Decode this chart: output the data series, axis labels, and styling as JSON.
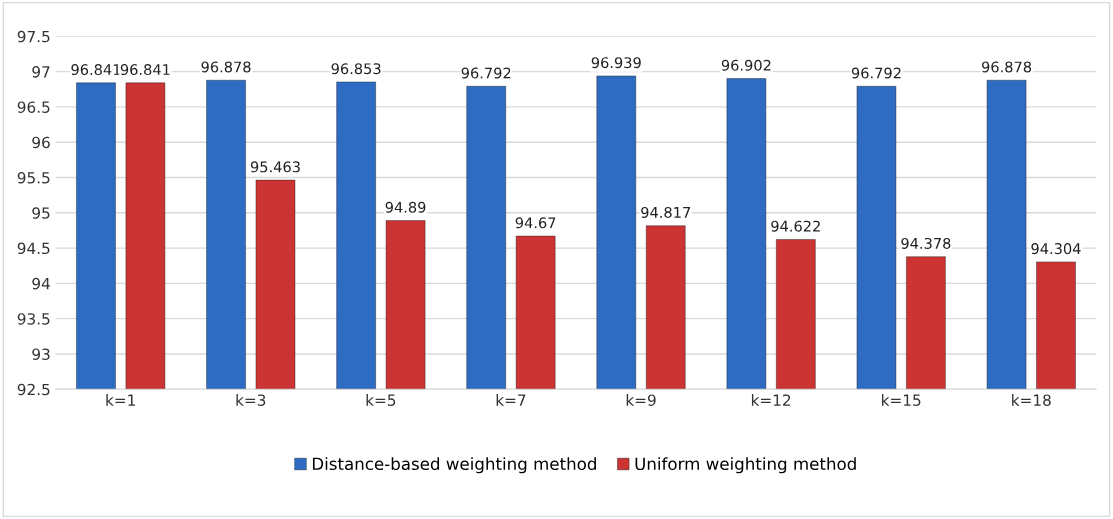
{
  "chart_data": {
    "type": "bar",
    "categories": [
      "k=1",
      "k=3",
      "k=5",
      "k=7",
      "k=9",
      "k=12",
      "k=15",
      "k=18"
    ],
    "series": [
      {
        "name": "Distance-based weighting method",
        "color": "#2e6cc4",
        "values": [
          96.841,
          96.878,
          96.853,
          96.792,
          96.939,
          96.902,
          96.792,
          96.878
        ]
      },
      {
        "name": "Uniform weighting method",
        "color": "#cc3333",
        "values": [
          96.841,
          95.463,
          94.89,
          94.67,
          94.817,
          94.622,
          94.378,
          94.304
        ]
      }
    ],
    "ylim": [
      92.5,
      97.5
    ],
    "yticks": [
      92.5,
      93,
      93.5,
      94,
      94.5,
      95,
      95.5,
      96,
      96.5,
      97,
      97.5
    ],
    "grid": "y",
    "legend": "bottom",
    "data_labels": true
  }
}
